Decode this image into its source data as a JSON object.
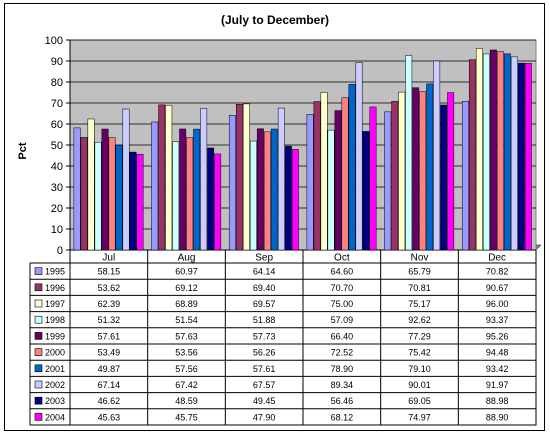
{
  "chart_data": {
    "type": "bar",
    "title": "(July to December)",
    "xlabel": "",
    "ylabel": "Pct",
    "ylim": [
      0,
      100
    ],
    "yticks": [
      0,
      10,
      20,
      30,
      40,
      50,
      60,
      70,
      80,
      90,
      100
    ],
    "grid": true,
    "categories": [
      "Jul",
      "Aug",
      "Sep",
      "Oct",
      "Nov",
      "Dec"
    ],
    "series": [
      {
        "name": "1995",
        "color": "#9999FF",
        "values": [
          "58.15",
          "60.97",
          "64.14",
          "64.60",
          "65.79",
          "70.82"
        ]
      },
      {
        "name": "1996",
        "color": "#993366",
        "values": [
          "53.62",
          "69.12",
          "69.40",
          "70.70",
          "70.81",
          "90.67"
        ]
      },
      {
        "name": "1997",
        "color": "#FFFFCC",
        "values": [
          "62.39",
          "68.89",
          "69.57",
          "75.00",
          "75.17",
          "96.00"
        ]
      },
      {
        "name": "1998",
        "color": "#CCFFFF",
        "values": [
          "51.32",
          "51.54",
          "51.88",
          "57.09",
          "92.62",
          "93.37"
        ]
      },
      {
        "name": "1999",
        "color": "#660066",
        "values": [
          "57.61",
          "57.63",
          "57.73",
          "66.40",
          "77.29",
          "95.26"
        ]
      },
      {
        "name": "2000",
        "color": "#FF8080",
        "values": [
          "53.49",
          "53.56",
          "56.26",
          "72.52",
          "75.42",
          "94.48"
        ]
      },
      {
        "name": "2001",
        "color": "#0066CC",
        "values": [
          "49.87",
          "57.56",
          "57.61",
          "78.90",
          "79.10",
          "93.42"
        ]
      },
      {
        "name": "2002",
        "color": "#CCCCFF",
        "values": [
          "67.14",
          "67.42",
          "67.57",
          "89.34",
          "90.01",
          "91.97"
        ]
      },
      {
        "name": "2003",
        "color": "#000080",
        "values": [
          "46.62",
          "48.59",
          "49.45",
          "56.46",
          "69.05",
          "88.98"
        ]
      },
      {
        "name": "2004",
        "color": "#FF00FF",
        "values": [
          "45.63",
          "45.75",
          "47.90",
          "68.12",
          "74.97",
          "88.90"
        ]
      }
    ]
  }
}
